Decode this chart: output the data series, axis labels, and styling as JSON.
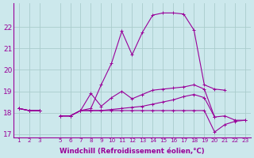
{
  "xlabel": "Windchill (Refroidissement éolien,°C)",
  "x": [
    1,
    2,
    3,
    4,
    5,
    6,
    7,
    8,
    9,
    10,
    11,
    12,
    13,
    14,
    15,
    16,
    17,
    18,
    19,
    20,
    21,
    22,
    23
  ],
  "line1": [
    18.2,
    18.1,
    18.1,
    null,
    17.85,
    17.85,
    18.1,
    18.1,
    18.1,
    18.15,
    18.2,
    18.25,
    18.3,
    18.4,
    18.5,
    18.6,
    18.75,
    18.85,
    18.7,
    17.8,
    17.85,
    17.65,
    17.65
  ],
  "line2": [
    18.2,
    18.1,
    18.1,
    null,
    17.85,
    17.85,
    18.1,
    18.9,
    18.3,
    18.7,
    19.0,
    18.65,
    18.85,
    19.05,
    19.1,
    19.15,
    19.2,
    19.3,
    19.1,
    17.8,
    null,
    null,
    null
  ],
  "line3": [
    18.2,
    18.1,
    18.1,
    null,
    17.85,
    17.85,
    18.1,
    18.2,
    19.3,
    20.3,
    21.8,
    20.7,
    21.75,
    22.55,
    22.65,
    22.65,
    22.6,
    21.85,
    19.3,
    19.1,
    19.05,
    null,
    null
  ],
  "line4": [
    18.2,
    18.1,
    18.1,
    null,
    17.85,
    17.85,
    18.1,
    18.1,
    18.1,
    18.1,
    18.1,
    18.1,
    18.1,
    18.1,
    18.1,
    18.1,
    18.1,
    18.1,
    18.1,
    17.1,
    17.45,
    17.6,
    17.65
  ],
  "ylim": [
    16.85,
    23.1
  ],
  "yticks": [
    17,
    18,
    19,
    20,
    21,
    22
  ],
  "xlim": [
    0.5,
    23.5
  ],
  "xticks": [
    1,
    2,
    3,
    5,
    6,
    7,
    8,
    9,
    10,
    11,
    12,
    13,
    14,
    15,
    16,
    17,
    18,
    19,
    20,
    21,
    22,
    23
  ],
  "line_color": "#990099",
  "bg_color": "#cce8ec",
  "grid_color": "#aacccc",
  "markersize": 2.5,
  "linewidth": 0.8,
  "tick_fontsize": 5.2,
  "ytick_fontsize": 6.5,
  "xlabel_fontsize": 6.2
}
